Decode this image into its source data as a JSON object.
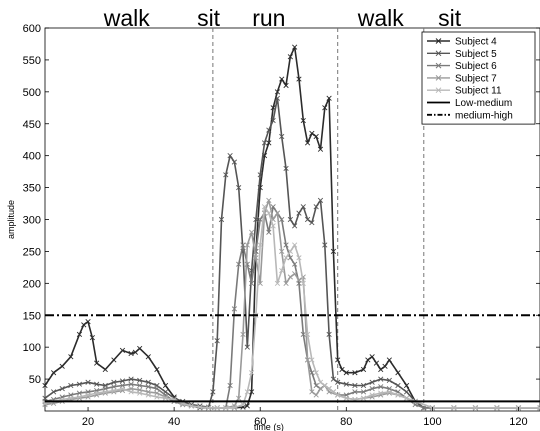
{
  "chart_data": {
    "type": "line",
    "title": "",
    "xlabel": "time (s)",
    "ylabel": "amplitude",
    "xlim": [
      10,
      125
    ],
    "ylim": [
      0,
      600
    ],
    "x_ticks": [
      20,
      40,
      60,
      80,
      100,
      120
    ],
    "y_ticks": [
      50,
      100,
      150,
      200,
      250,
      300,
      350,
      400,
      450,
      500,
      550,
      600
    ],
    "legend_position": "top-right",
    "grid": false,
    "activities": [
      {
        "label": "walk",
        "x_center": 29
      },
      {
        "label": "sit",
        "x_center": 48
      },
      {
        "label": "run",
        "x_center": 62
      },
      {
        "label": "walk",
        "x_center": 88
      },
      {
        "label": "sit",
        "x_center": 104
      }
    ],
    "phase_boundaries": [
      49,
      78,
      98
    ],
    "thresholds": [
      {
        "name": "Low-medium",
        "value": 15,
        "style": "solid"
      },
      {
        "name": "medium-high",
        "value": 150,
        "style": "dashdot"
      }
    ],
    "series": [
      {
        "name": "Subject 4",
        "color": "#2b2b2b",
        "x": [
          10,
          12,
          14,
          16,
          18,
          19,
          20,
          21,
          22,
          24,
          26,
          28,
          30,
          31,
          32,
          34,
          36,
          38,
          40,
          42,
          44,
          46,
          48,
          50,
          52,
          54,
          56,
          57,
          58,
          59,
          60,
          61,
          62,
          63,
          64,
          65,
          66,
          67,
          68,
          69,
          70,
          71,
          72,
          73,
          74,
          75,
          76,
          77,
          78,
          79,
          80,
          82,
          84,
          85,
          86,
          87,
          88,
          89,
          90,
          92,
          94,
          96,
          98,
          100,
          105,
          110,
          115,
          120,
          125
        ],
        "y": [
          40,
          60,
          70,
          85,
          120,
          135,
          140,
          115,
          75,
          65,
          80,
          95,
          90,
          92,
          98,
          85,
          65,
          40,
          22,
          12,
          8,
          5,
          5,
          5,
          5,
          5,
          6,
          8,
          30,
          250,
          350,
          400,
          420,
          475,
          500,
          520,
          510,
          555,
          570,
          520,
          455,
          420,
          435,
          430,
          410,
          475,
          490,
          250,
          80,
          65,
          60,
          60,
          65,
          80,
          85,
          75,
          65,
          70,
          80,
          60,
          40,
          15,
          5,
          5,
          5,
          5,
          5,
          5,
          5
        ]
      },
      {
        "name": "Subject 5",
        "color": "#555555",
        "x": [
          10,
          12,
          14,
          16,
          18,
          20,
          22,
          24,
          26,
          28,
          30,
          32,
          34,
          36,
          38,
          40,
          42,
          44,
          46,
          48,
          49,
          50,
          51,
          52,
          53,
          54,
          55,
          56,
          57,
          58,
          59,
          60,
          61,
          62,
          63,
          64,
          65,
          66,
          67,
          68,
          69,
          70,
          71,
          72,
          73,
          74,
          75,
          76,
          77,
          78,
          80,
          82,
          84,
          86,
          88,
          90,
          92,
          94,
          96,
          98,
          100,
          105,
          110,
          115,
          120,
          125
        ],
        "y": [
          20,
          30,
          35,
          40,
          42,
          45,
          42,
          40,
          45,
          47,
          50,
          48,
          45,
          40,
          30,
          20,
          15,
          10,
          8,
          6,
          30,
          110,
          300,
          370,
          400,
          390,
          350,
          250,
          100,
          220,
          300,
          370,
          420,
          440,
          455,
          490,
          430,
          380,
          300,
          290,
          310,
          320,
          300,
          295,
          320,
          330,
          260,
          120,
          50,
          45,
          42,
          40,
          40,
          45,
          50,
          48,
          40,
          30,
          15,
          5,
          5,
          5,
          5,
          5,
          5,
          5
        ]
      },
      {
        "name": "Subject 6",
        "color": "#7a7a7a",
        "x": [
          10,
          12,
          14,
          16,
          18,
          20,
          22,
          24,
          26,
          28,
          30,
          32,
          34,
          36,
          38,
          40,
          42,
          44,
          46,
          48,
          50,
          52,
          53,
          54,
          55,
          56,
          57,
          58,
          59,
          60,
          61,
          62,
          63,
          64,
          65,
          66,
          67,
          68,
          69,
          70,
          71,
          72,
          73,
          74,
          75,
          76,
          77,
          78,
          80,
          82,
          84,
          86,
          88,
          90,
          92,
          94,
          96,
          98,
          100,
          105,
          110,
          115,
          120,
          125
        ],
        "y": [
          15,
          18,
          22,
          25,
          28,
          30,
          32,
          35,
          38,
          40,
          42,
          40,
          38,
          35,
          25,
          15,
          10,
          8,
          6,
          5,
          5,
          5,
          40,
          160,
          230,
          260,
          230,
          200,
          250,
          300,
          310,
          280,
          320,
          310,
          300,
          260,
          240,
          230,
          200,
          120,
          80,
          60,
          40,
          35,
          40,
          35,
          30,
          25,
          25,
          30,
          30,
          35,
          38,
          35,
          30,
          20,
          10,
          5,
          5,
          5,
          5,
          5,
          5,
          5
        ]
      },
      {
        "name": "Subject 7",
        "color": "#9a9a9a",
        "x": [
          10,
          12,
          14,
          16,
          18,
          20,
          22,
          24,
          26,
          28,
          30,
          32,
          34,
          36,
          38,
          40,
          42,
          44,
          46,
          48,
          50,
          52,
          54,
          55,
          56,
          57,
          58,
          59,
          60,
          61,
          62,
          63,
          64,
          65,
          66,
          67,
          68,
          69,
          70,
          71,
          72,
          73,
          74,
          75,
          76,
          78,
          80,
          82,
          84,
          86,
          88,
          90,
          92,
          94,
          96,
          100,
          105,
          110,
          115,
          120,
          125
        ],
        "y": [
          10,
          12,
          15,
          18,
          20,
          22,
          25,
          28,
          30,
          32,
          35,
          33,
          30,
          28,
          22,
          15,
          10,
          8,
          6,
          5,
          5,
          5,
          8,
          20,
          120,
          260,
          280,
          240,
          200,
          310,
          330,
          300,
          310,
          250,
          200,
          210,
          215,
          205,
          210,
          80,
          30,
          25,
          35,
          40,
          30,
          25,
          20,
          18,
          20,
          22,
          25,
          28,
          25,
          20,
          15,
          5,
          5,
          5,
          5,
          5,
          5
        ]
      },
      {
        "name": "Subject 11",
        "color": "#b8b8b8",
        "x": [
          10,
          12,
          14,
          16,
          18,
          20,
          22,
          24,
          26,
          28,
          30,
          32,
          34,
          36,
          38,
          40,
          42,
          44,
          46,
          48,
          50,
          52,
          54,
          56,
          57,
          58,
          59,
          60,
          61,
          62,
          63,
          64,
          65,
          66,
          67,
          68,
          69,
          70,
          71,
          72,
          73,
          74,
          75,
          76,
          77,
          78,
          80,
          82,
          84,
          86,
          88,
          90,
          92,
          94,
          96,
          100,
          105,
          110,
          115,
          120,
          125
        ],
        "y": [
          12,
          15,
          18,
          20,
          22,
          25,
          28,
          30,
          32,
          35,
          30,
          28,
          25,
          22,
          20,
          18,
          12,
          8,
          6,
          5,
          5,
          5,
          5,
          10,
          30,
          60,
          150,
          260,
          320,
          310,
          290,
          200,
          220,
          240,
          250,
          260,
          240,
          200,
          120,
          80,
          60,
          45,
          40,
          35,
          30,
          25,
          20,
          18,
          20,
          25,
          28,
          30,
          25,
          20,
          15,
          5,
          5,
          5,
          5,
          5,
          5
        ]
      }
    ]
  }
}
